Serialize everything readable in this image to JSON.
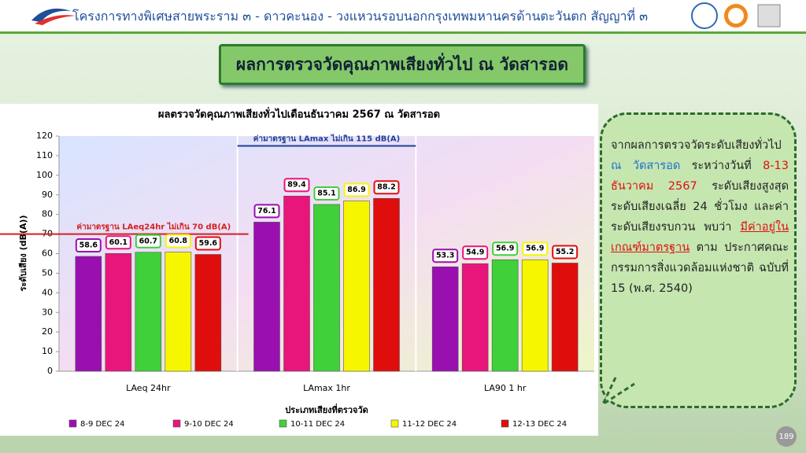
{
  "header": {
    "title": "โครงการทางพิเศษสายพระราม ๓ - ดาวคะนอง - วงแหวนรอบนอกกรุงเทพมหานครด้านตะวันตก สัญญาที่ ๓"
  },
  "slide_title": "ผลการตรวจวัดคุณภาพเสียงทั่วไป ณ วัดสารอด",
  "callout": {
    "runs": [
      "จากผลการตรวจวัดระดับเสียงทั่วไป",
      "ณ วัดสารอด",
      "ระหว่างวันที่",
      "8-13 ธันวาคม 2567",
      "ระดับเสียงสูงสุด ระดับเสียงเฉลี่ย 24 ชั่วโมง และค่าระดับเสียงรบกวน พบว่า",
      "มีค่าอยู่ในเกณฑ์มาตรฐาน",
      "ตาม ประกาศคณะกรรมการสิ่งแวดล้อมแห่งชาติ ฉบับที่ 15 (พ.ศ. 2540)"
    ]
  },
  "page_number": "189",
  "chart_data": {
    "type": "bar",
    "title": "ผลตรวจวัดคุณภาพเสียงทั่วไปเดือนธันวาคม 2567 ณ วัดสารอด",
    "x_label": "ประเภทเสียงที่ตรวจวัด",
    "y_label": "ระดับเสียง (dB(A))",
    "categories": [
      "LAeq 24hr",
      "LAmax 1hr",
      "LA90 1 hr"
    ],
    "series": [
      {
        "name": "8-9 DEC 24",
        "color": "#9a0fb0",
        "values": [
          58.6,
          76.1,
          53.3
        ]
      },
      {
        "name": "9-10 DEC 24",
        "color": "#e8157a",
        "values": [
          60.1,
          89.4,
          54.9
        ]
      },
      {
        "name": "10-11 DEC 24",
        "color": "#3fd03a",
        "values": [
          60.7,
          85.1,
          56.9
        ]
      },
      {
        "name": "11-12 DEC 24",
        "color": "#f6f600",
        "values": [
          60.8,
          86.9,
          56.9
        ]
      },
      {
        "name": "12-13 DEC 24",
        "color": "#e00d0d",
        "values": [
          59.6,
          88.2,
          55.2
        ]
      }
    ],
    "reference_lines": [
      {
        "value": 70,
        "label": "ค่ามาตรฐาน LAeq24hr ไม่เกิน 70 dB(A)",
        "color": "#d42020"
      },
      {
        "value": 115,
        "label": "ค่ามาตรฐาน LAmax ไม่เกิน 115 dB(A)",
        "color": "#1f3f9a"
      }
    ],
    "ylim": [
      0,
      120
    ],
    "yticks": [
      0,
      10,
      20,
      30,
      40,
      50,
      60,
      70,
      80,
      90,
      100,
      110,
      120
    ],
    "grid": false
  }
}
